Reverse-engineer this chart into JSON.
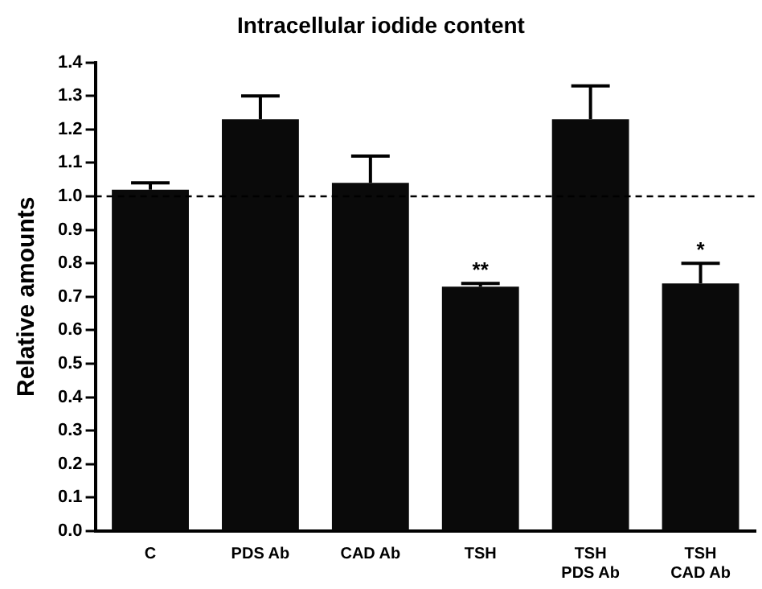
{
  "chart_data": {
    "type": "bar",
    "title": "Intracellular iodide content",
    "ylabel": "Relative amounts",
    "categories": [
      "C",
      "PDS Ab",
      "CAD Ab",
      "TSH",
      "TSH PDS Ab",
      "TSH CAD Ab"
    ],
    "values": [
      1.02,
      1.23,
      1.04,
      0.73,
      1.23,
      0.74
    ],
    "errors": [
      [
        1.02,
        1.04
      ],
      [
        1.23,
        1.3
      ],
      [
        1.04,
        1.12
      ],
      [
        0.73,
        0.74
      ],
      [
        1.23,
        1.33
      ],
      [
        0.74,
        0.8
      ]
    ],
    "color": "#0a0a0a",
    "ylim": [
      0,
      1.4
    ],
    "yticks": [
      {
        "value": 0,
        "label": "0.0"
      },
      0.1,
      0.2,
      0.3,
      0.4,
      0.5,
      0.6,
      0.7,
      0.8,
      0.9,
      {
        "value": 1,
        "label": "1.0"
      },
      1.1,
      1.2,
      1.3,
      1.4
    ],
    "ref_lines": [
      {
        "axis": "y",
        "value": 1.0,
        "line_style": "dashed",
        "color": "#000000"
      }
    ],
    "annotations": [
      {
        "text": "**",
        "x": "TSH",
        "y": 0.74
      },
      {
        "text": "*",
        "x": "TSH CAD Ab",
        "y": 0.8
      }
    ],
    "grid": false,
    "legend": false
  }
}
